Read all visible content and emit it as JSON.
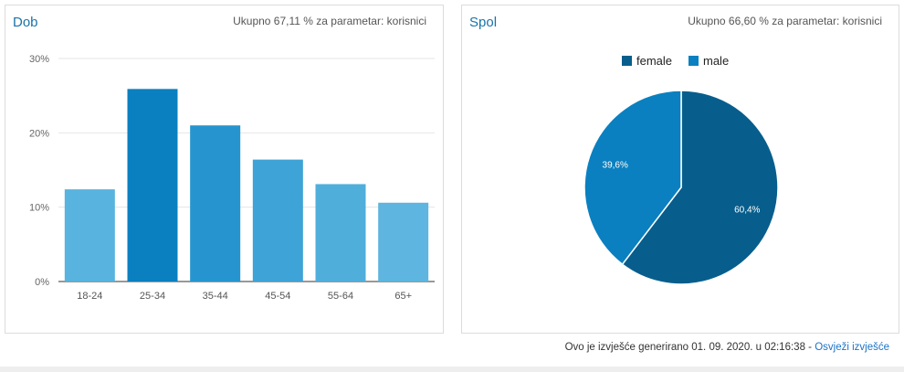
{
  "dob": {
    "title": "Dob",
    "note": "Ukupno 67,11 % za parametar: korisnici"
  },
  "spol": {
    "title": "Spol",
    "note": "Ukupno 66,60 % za parametar: korisnici"
  },
  "footer": {
    "text": "Ovo je izvješće generirano 01. 09. 2020. u 02:16:38 - ",
    "link": "Osvježi izvješće"
  },
  "chart_data": [
    {
      "type": "bar",
      "title": "Dob",
      "categories": [
        "18-24",
        "25-34",
        "35-44",
        "45-54",
        "55-64",
        "65+"
      ],
      "values": [
        12.4,
        25.9,
        21.0,
        16.4,
        13.1,
        10.6
      ],
      "colors": [
        "#58b3de",
        "#0a80c0",
        "#2695cf",
        "#3ea3d6",
        "#50aedb",
        "#5db5e0"
      ],
      "ylim": [
        0,
        30
      ],
      "yticks": [
        0,
        10,
        20,
        30
      ],
      "ytick_labels": [
        "0%",
        "10%",
        "20%",
        "30%"
      ],
      "grid": true
    },
    {
      "type": "pie",
      "title": "Spol",
      "labels": [
        "female",
        "male"
      ],
      "values": [
        60.4,
        39.6
      ],
      "value_labels": [
        "60,4%",
        "39,6%"
      ],
      "colors": [
        "#075e8c",
        "#0a80c0"
      ],
      "legend": "top"
    }
  ]
}
